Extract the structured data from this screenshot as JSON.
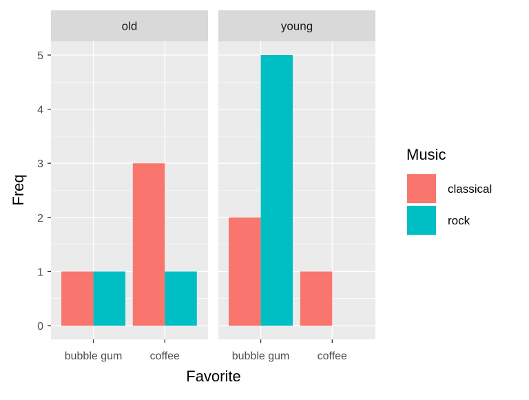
{
  "chart_data": {
    "type": "bar",
    "xlabel": "Favorite",
    "ylabel": "Freq",
    "ylim": [
      0,
      5.5
    ],
    "y_ticks": [
      0,
      1,
      2,
      3,
      4,
      5
    ],
    "categories": [
      "bubble gum",
      "coffee"
    ],
    "grid": true,
    "legend": {
      "title": "Music",
      "position": "right",
      "entries": [
        {
          "name": "classical",
          "color": "#F8766D"
        },
        {
          "name": "rock",
          "color": "#00BFC4"
        }
      ]
    },
    "facets": [
      {
        "label": "old",
        "series": [
          {
            "name": "classical",
            "values": [
              1,
              3
            ]
          },
          {
            "name": "rock",
            "values": [
              1,
              1
            ]
          }
        ]
      },
      {
        "label": "young",
        "series": [
          {
            "name": "classical",
            "values": [
              2,
              1
            ]
          },
          {
            "name": "rock",
            "values": [
              5,
              0
            ]
          }
        ]
      }
    ]
  },
  "colors": {
    "panel_background": "#EBEBEB",
    "strip_background": "#D9D9D9",
    "grid": "#FFFFFF"
  }
}
